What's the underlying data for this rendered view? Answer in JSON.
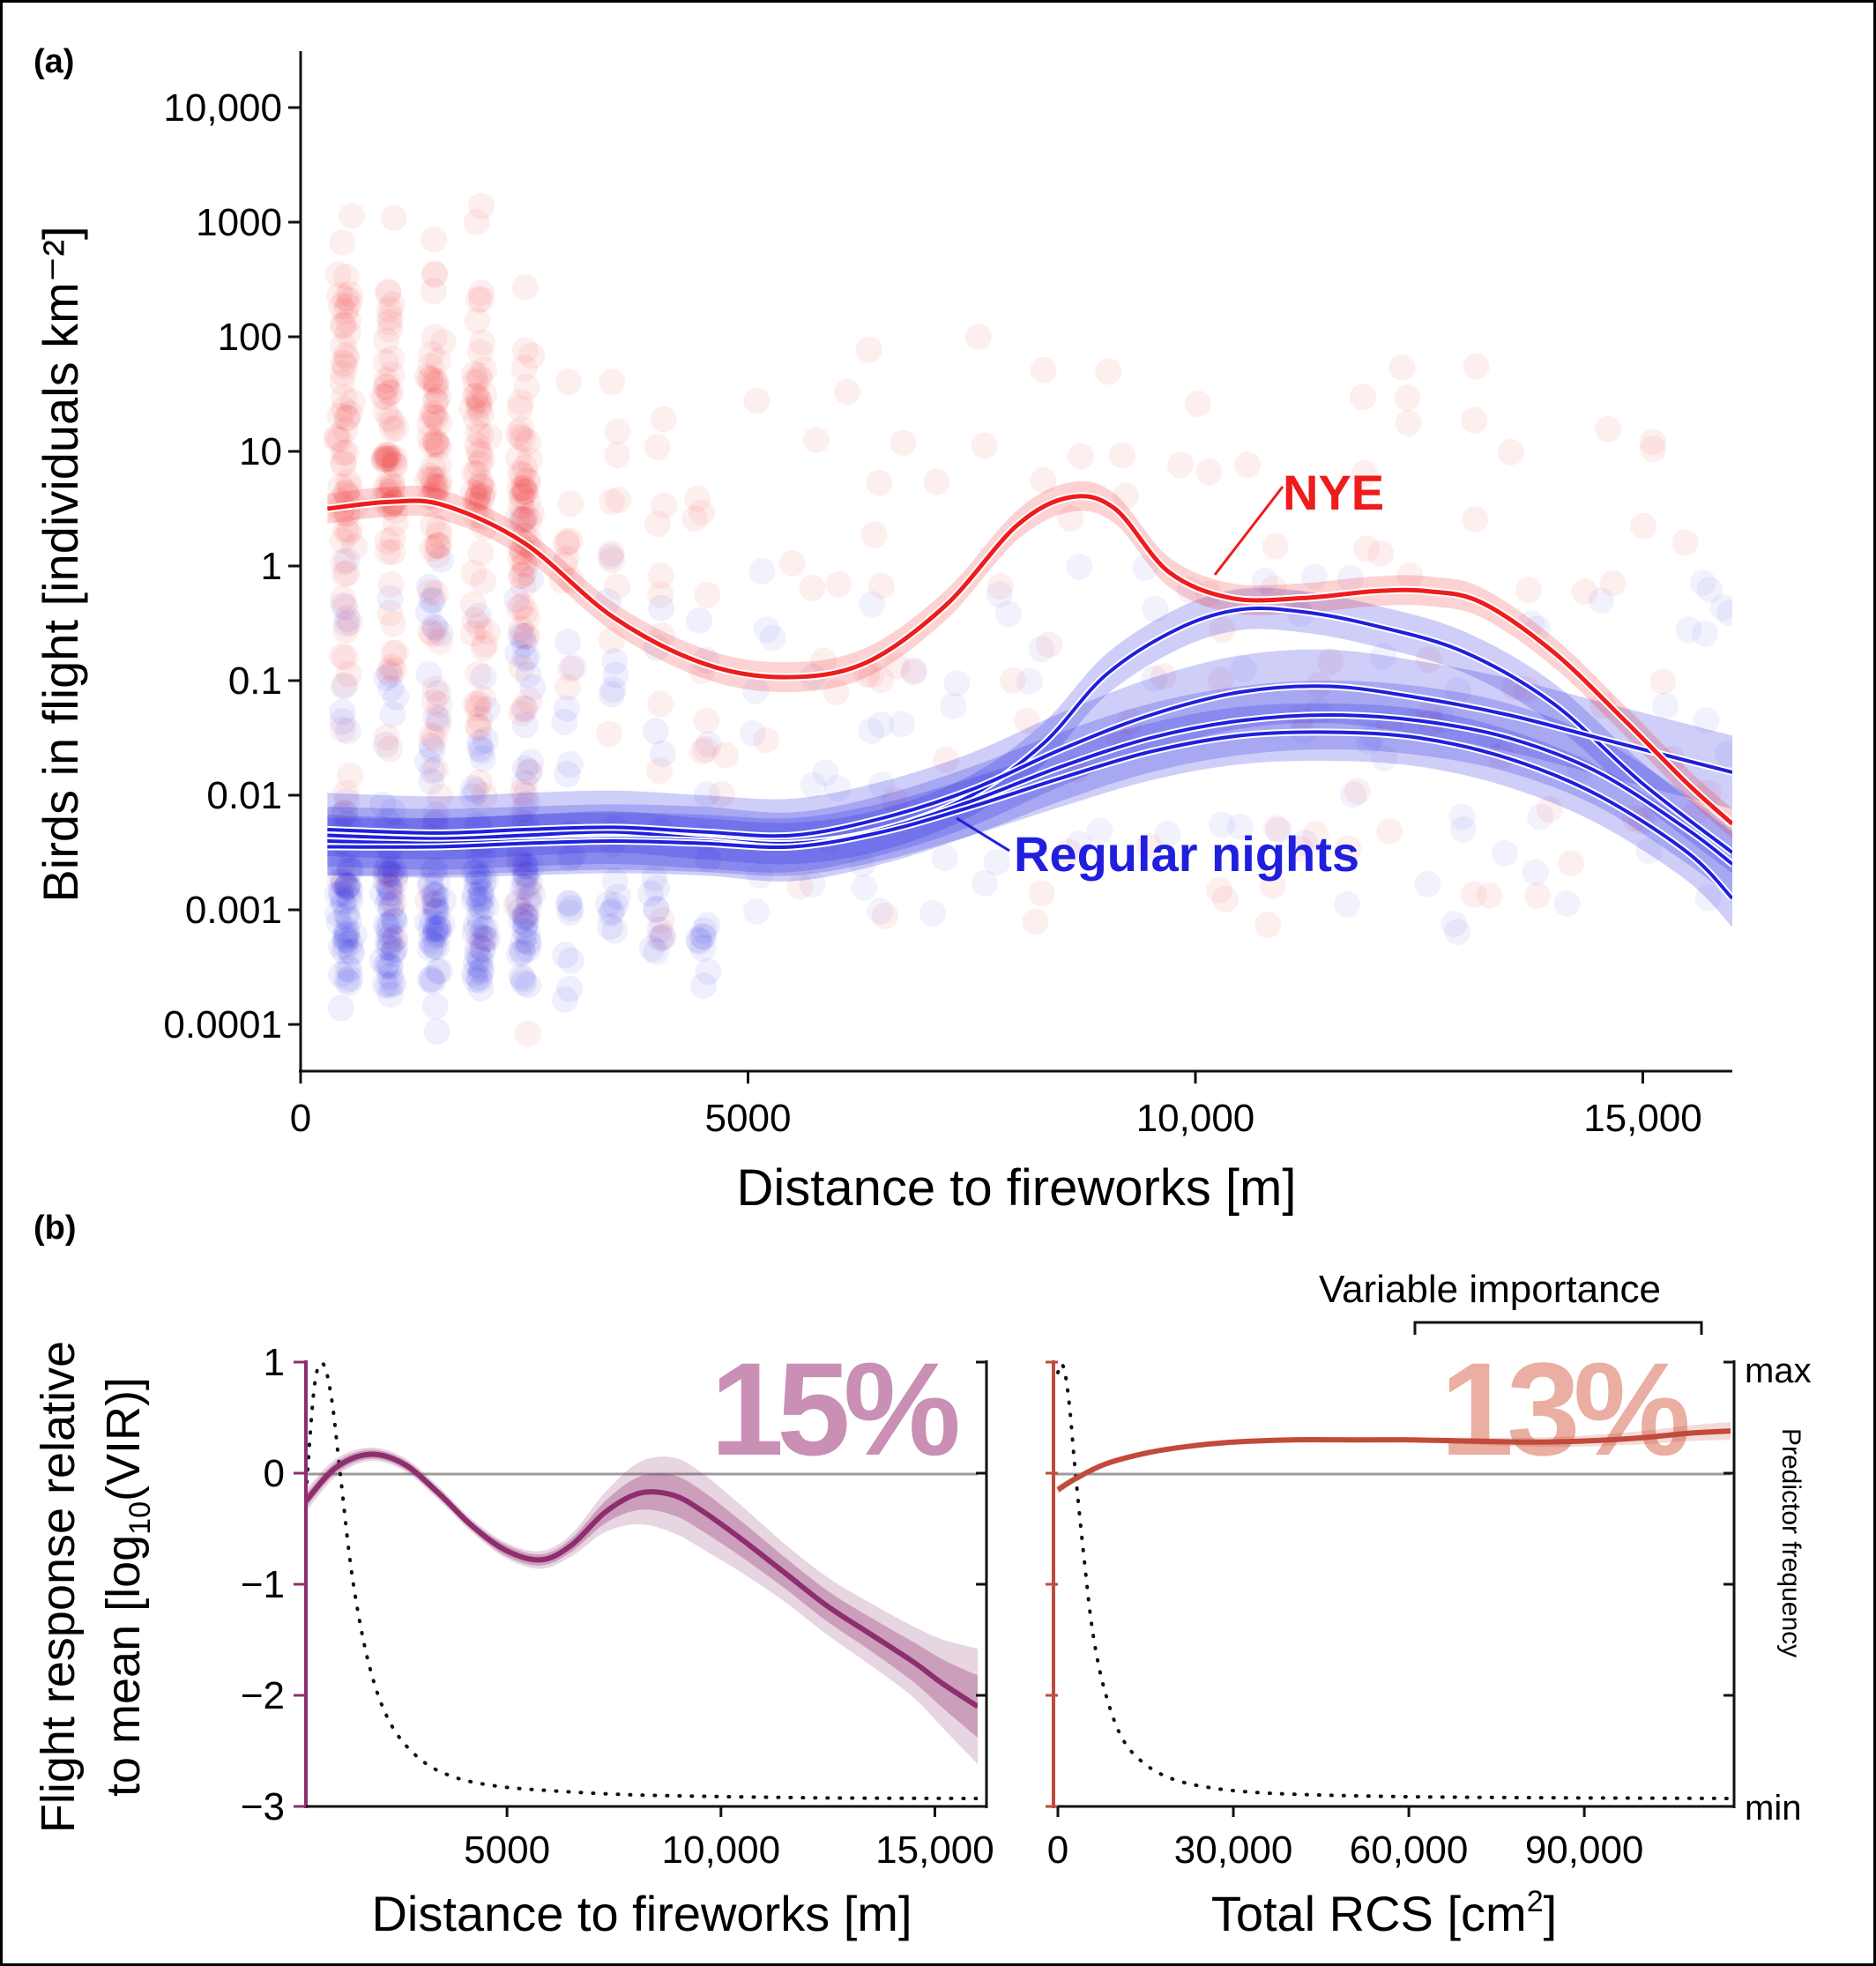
{
  "colors": {
    "nye": "#ee1c1c",
    "regular": "#1f1fdd",
    "purple": "#8e2e6e",
    "purple_text": "#c98fb4",
    "red_b": "#c24a3a",
    "red_text": "#eaaea2",
    "zero_line": "#9b9b9b",
    "axis": "#111111"
  },
  "chart_data": [
    {
      "type": "scatter",
      "panel_label": "(a)",
      "ylabel": "Birds in flight [individuals km⁻²]",
      "xlabel": "Distance to fireworks [m]",
      "y_scale": "log10",
      "xlim": [
        0,
        16000
      ],
      "ylim_log10": [
        -4.8,
        4.5
      ],
      "x_ticks": [
        0,
        5000,
        10000,
        15000
      ],
      "x_tick_labels": [
        "0",
        "5000",
        "10,000",
        "15,000"
      ],
      "y_ticks_log10": [
        4,
        3,
        2,
        1,
        0,
        -1,
        -2,
        -3,
        -4
      ],
      "y_tick_labels": [
        "10,000",
        "1000",
        "100",
        "10",
        "1",
        "0.1",
        "0.01",
        "0.001",
        "0.0001"
      ],
      "series": [
        {
          "name": "NYE",
          "label": "NYE",
          "color_key": "nye",
          "fit_x": [
            300,
            1000,
            1600,
            2500,
            3500,
            4500,
            5400,
            6300,
            7200,
            8000,
            8600,
            9100,
            9700,
            10400,
            11200,
            12000,
            12600,
            13200,
            14000,
            14800,
            15500,
            16000
          ],
          "fit_log10_y": [
            0.5,
            0.56,
            0.53,
            0.2,
            -0.45,
            -0.85,
            -0.97,
            -0.85,
            -0.35,
            0.35,
            0.6,
            0.5,
            -0.05,
            -0.28,
            -0.28,
            -0.22,
            -0.22,
            -0.32,
            -0.75,
            -1.35,
            -1.9,
            -2.25
          ],
          "band_log10": 0.13
        },
        {
          "name": "Regular nights",
          "label": "Regular nights",
          "color_key": "regular",
          "fits": [
            {
              "fit_x": [
                300,
                1500,
                2500,
                3500,
                4500,
                5500,
                6500,
                7500,
                8300,
                9000,
                9800,
                10500,
                11200,
                12000,
                13000,
                14000,
                15000,
                16000
              ],
              "fit_log10_y": [
                -2.35,
                -2.38,
                -2.35,
                -2.32,
                -2.38,
                -2.42,
                -2.3,
                -2.0,
                -1.55,
                -0.95,
                -0.55,
                -0.38,
                -0.4,
                -0.52,
                -0.75,
                -1.2,
                -1.9,
                -2.5
              ],
              "band_log10": 0.18
            },
            {
              "fit_x": [
                300,
                1500,
                2500,
                3500,
                4500,
                5500,
                6500,
                7500,
                8500,
                9500,
                10500,
                11500,
                12500,
                13500,
                14500,
                15500,
                16000
              ],
              "fit_log10_y": [
                -2.3,
                -2.33,
                -2.3,
                -2.28,
                -2.32,
                -2.35,
                -2.2,
                -1.95,
                -1.6,
                -1.3,
                -1.1,
                -1.05,
                -1.15,
                -1.3,
                -1.5,
                -1.7,
                -1.8
              ],
              "band_log10": 0.32
            },
            {
              "fit_x": [
                300,
                1500,
                2500,
                3500,
                4500,
                5500,
                6500,
                7500,
                8500,
                9500,
                10500,
                11500,
                12500,
                13500,
                14500,
                15500,
                16000
              ],
              "fit_log10_y": [
                -2.4,
                -2.42,
                -2.4,
                -2.38,
                -2.4,
                -2.45,
                -2.3,
                -2.05,
                -1.75,
                -1.5,
                -1.35,
                -1.3,
                -1.35,
                -1.5,
                -1.8,
                -2.3,
                -2.6
              ],
              "band_log10": 0.3
            },
            {
              "fit_x": [
                300,
                1500,
                2500,
                3500,
                4500,
                5500,
                6500,
                7500,
                8500,
                9500,
                10500,
                11500,
                12500,
                13500,
                14500,
                15500,
                16000
              ],
              "fit_log10_y": [
                -2.45,
                -2.45,
                -2.42,
                -2.4,
                -2.42,
                -2.45,
                -2.32,
                -2.1,
                -1.85,
                -1.62,
                -1.48,
                -1.45,
                -1.5,
                -1.68,
                -2.0,
                -2.5,
                -2.9
              ],
              "band_log10": 0.25
            }
          ]
        }
      ]
    },
    {
      "type": "line",
      "panel_label": "(b)",
      "ylabel_line1": "Flight response relative",
      "ylabel_line2_prefix": "to mean [log",
      "ylabel_sub": "10",
      "ylabel_line2_suffix": "(VIR)]",
      "xlabel": "Distance to fireworks [m]",
      "importance_label": "15%",
      "xlim": [
        300,
        16000
      ],
      "ylim": [
        -3,
        1
      ],
      "y_ticks": [
        1,
        0,
        -1,
        -2,
        -3
      ],
      "y_tick_labels": [
        "1",
        "0",
        "−1",
        "−2",
        "−3"
      ],
      "x_ticks": [
        5000,
        10000,
        15000
      ],
      "x_tick_labels": [
        "5000",
        "10,000",
        "15,000"
      ],
      "x": [
        300,
        1000,
        1800,
        2600,
        3400,
        4200,
        5000,
        5800,
        6500,
        7300,
        8100,
        8900,
        9600,
        10500,
        11500,
        12500,
        13500,
        14500,
        15200,
        16000
      ],
      "y": [
        -0.25,
        0.05,
        0.17,
        0.08,
        -0.18,
        -0.48,
        -0.7,
        -0.78,
        -0.65,
        -0.35,
        -0.18,
        -0.2,
        -0.35,
        -0.6,
        -0.9,
        -1.2,
        -1.45,
        -1.7,
        -1.9,
        -2.1
      ],
      "ci_inner": [
        0.06,
        0.05,
        0.04,
        0.04,
        0.04,
        0.04,
        0.05,
        0.05,
        0.06,
        0.1,
        0.15,
        0.18,
        0.18,
        0.16,
        0.14,
        0.14,
        0.15,
        0.18,
        0.22,
        0.28
      ],
      "ci_outer": [
        0.1,
        0.08,
        0.06,
        0.06,
        0.06,
        0.06,
        0.07,
        0.08,
        0.1,
        0.18,
        0.28,
        0.34,
        0.34,
        0.3,
        0.26,
        0.26,
        0.28,
        0.32,
        0.4,
        0.52
      ],
      "predictor_frequency": {
        "x": [
          300,
          500,
          700,
          900,
          1100,
          1400,
          1800,
          2300,
          3000,
          3800,
          4800,
          6000,
          7500,
          9000,
          11000,
          13000,
          16000
        ],
        "y": [
          0.7,
          0.95,
          1.0,
          0.92,
          0.75,
          0.5,
          0.3,
          0.17,
          0.09,
          0.05,
          0.03,
          0.02,
          0.012,
          0.008,
          0.005,
          0.003,
          0.002
        ]
      }
    },
    {
      "type": "line",
      "xlabel_prefix": "Total RCS [cm",
      "xlabel_sup": "2",
      "xlabel_suffix": "]",
      "importance_label": "13%",
      "importance_caption": "Variable importance",
      "right_axis_title": "Predictor frequency",
      "right_axis_max": "max",
      "right_axis_min": "min",
      "xlim": [
        0,
        115000
      ],
      "ylim": [
        -3,
        1
      ],
      "x_ticks": [
        0,
        30000,
        60000,
        90000
      ],
      "x_tick_labels": [
        "0",
        "30,000",
        "60,000",
        "90,000"
      ],
      "x": [
        0,
        3000,
        8000,
        15000,
        22000,
        30000,
        40000,
        50000,
        60000,
        70000,
        80000,
        90000,
        100000,
        108000,
        115000
      ],
      "y": [
        -0.15,
        -0.05,
        0.08,
        0.18,
        0.24,
        0.28,
        0.3,
        0.3,
        0.3,
        0.29,
        0.28,
        0.29,
        0.32,
        0.36,
        0.38
      ],
      "ci_outer": [
        0.04,
        0.03,
        0.02,
        0.02,
        0.02,
        0.02,
        0.02,
        0.02,
        0.02,
        0.03,
        0.04,
        0.05,
        0.06,
        0.07,
        0.08
      ],
      "predictor_frequency": {
        "x": [
          0,
          500,
          1200,
          2000,
          3000,
          4500,
          6000,
          8000,
          11000,
          15000,
          20000,
          27000,
          35000,
          45000,
          60000,
          80000,
          115000
        ],
        "y": [
          0.98,
          1.0,
          0.98,
          0.9,
          0.75,
          0.55,
          0.38,
          0.25,
          0.14,
          0.08,
          0.045,
          0.025,
          0.015,
          0.01,
          0.006,
          0.004,
          0.002
        ]
      }
    }
  ]
}
